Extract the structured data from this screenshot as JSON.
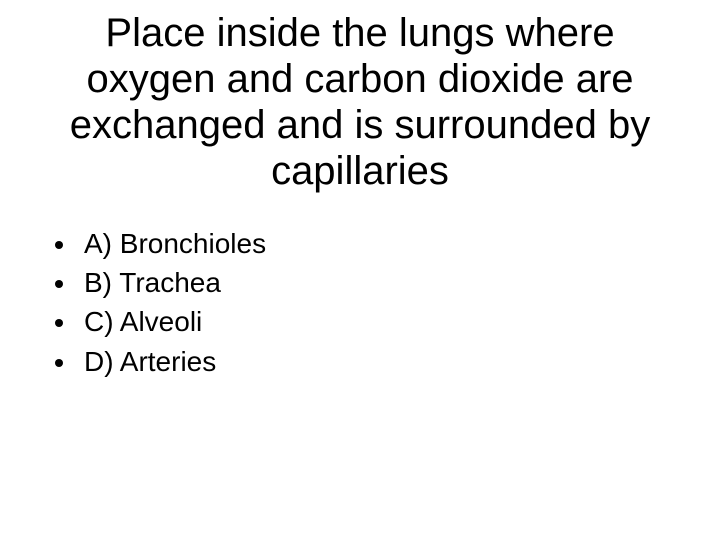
{
  "question": {
    "title": "Place inside the lungs where oxygen and carbon dioxide are exchanged and is surrounded by capillaries",
    "title_fontsize": 40,
    "option_fontsize": 28,
    "text_color": "#000000",
    "background_color": "#ffffff",
    "options": [
      {
        "label": "A) Bronchioles"
      },
      {
        "label": "B) Trachea"
      },
      {
        "label": "C) Alveoli"
      },
      {
        "label": "D) Arteries"
      }
    ]
  }
}
